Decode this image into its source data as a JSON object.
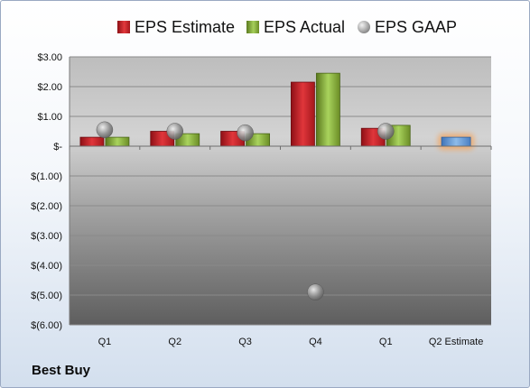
{
  "company": "Best Buy",
  "legend": {
    "estimate": "EPS Estimate",
    "actual": "EPS Actual",
    "gaap": "EPS GAAP"
  },
  "colors": {
    "estimate": "#c0262b",
    "actual": "#86b03a",
    "gaap": "#9a9a9a",
    "highlight": "#f0a868",
    "q2_estimate_bar": "#6fa4dc"
  },
  "chart_data": {
    "type": "bar",
    "categories": [
      "Q1",
      "Q2",
      "Q3",
      "Q4",
      "Q1",
      "Q2 Estimate"
    ],
    "series": [
      {
        "name": "EPS Estimate",
        "values": [
          0.3,
          0.5,
          0.5,
          2.15,
          0.6,
          null
        ]
      },
      {
        "name": "EPS Actual",
        "values": [
          0.3,
          0.42,
          0.42,
          2.45,
          0.7,
          null
        ]
      },
      {
        "name": "EPS GAAP",
        "values": [
          0.55,
          0.5,
          0.45,
          -4.9,
          0.5,
          null
        ]
      },
      {
        "name": "",
        "values": [
          null,
          null,
          null,
          null,
          null,
          0.3
        ]
      }
    ],
    "ylim": [
      -6,
      3
    ],
    "yticks": [
      3,
      2,
      1,
      0,
      -1,
      -2,
      -3,
      -4,
      -5,
      -6
    ],
    "ytick_labels": [
      "$3.00",
      "$2.00",
      "$1.00",
      "$-",
      "$(1.00)",
      "$(2.00)",
      "$(3.00)",
      "$(4.00)",
      "$(5.00)",
      "$(6.00)"
    ],
    "grid": true,
    "legend_position": "top",
    "xlabel": "",
    "ylabel": ""
  }
}
